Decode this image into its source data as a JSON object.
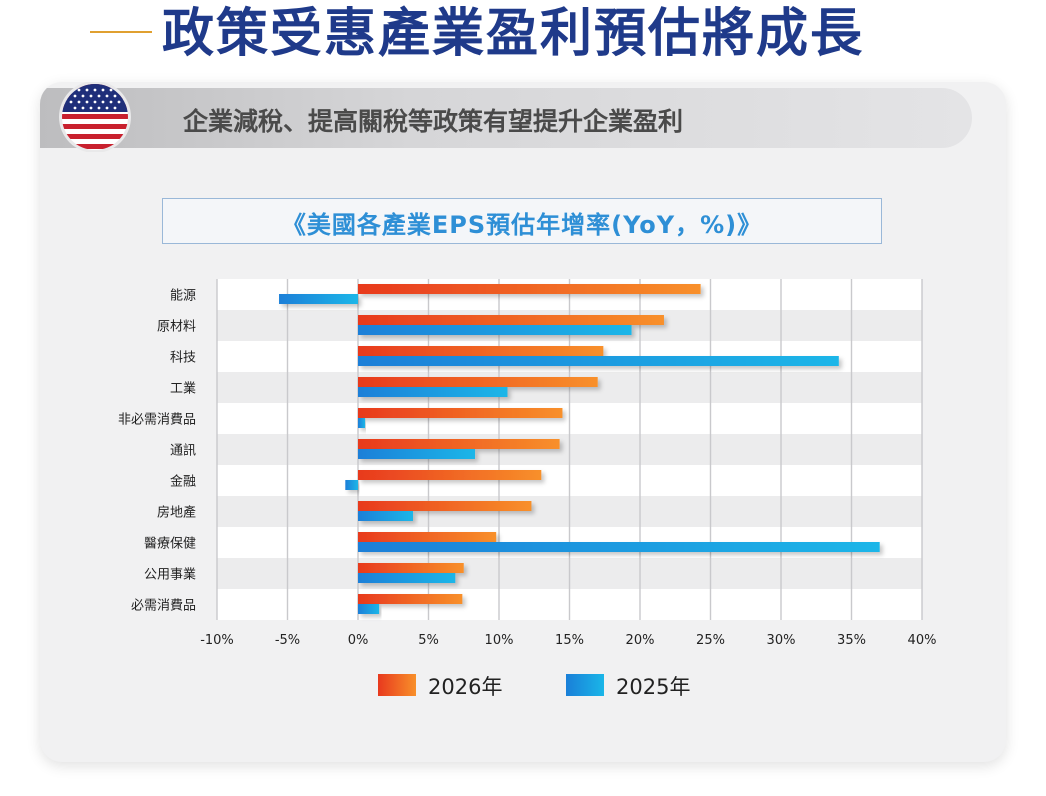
{
  "header": {
    "title": "政策受惠產業盈利預估將成長"
  },
  "banner": {
    "subtitle": "企業減稅、提高關稅等政策有望提升企業盈利",
    "flag_icon": "us-flag-icon"
  },
  "chart_data": {
    "type": "bar",
    "orientation": "horizontal",
    "title": "《美國各產業EPS預估年增率(YoY，%)》",
    "categories": [
      "能源",
      "原材料",
      "科技",
      "工業",
      "非必需消費品",
      "通訊",
      "金融",
      "房地產",
      "醫療保健",
      "公用事業",
      "必需消費品"
    ],
    "series": [
      {
        "name": "2026年",
        "color": "#f06a2a",
        "values": [
          24.3,
          21.7,
          17.4,
          17.0,
          14.5,
          14.3,
          13.0,
          12.3,
          9.8,
          7.5,
          7.4
        ]
      },
      {
        "name": "2025年",
        "color": "#1f97de",
        "values": [
          -5.6,
          19.4,
          34.1,
          10.6,
          0.5,
          8.3,
          -0.9,
          3.9,
          37.0,
          6.9,
          1.5
        ]
      }
    ],
    "xlim": [
      -10,
      40
    ],
    "xticks": [
      -10,
      -5,
      0,
      5,
      10,
      15,
      20,
      25,
      30,
      35,
      40
    ],
    "xtick_labels": [
      "-10%",
      "-5%",
      "0%",
      "5%",
      "10%",
      "15%",
      "20%",
      "25%",
      "30%",
      "35%",
      "40%"
    ],
    "grid": true,
    "legend": "bottom"
  }
}
